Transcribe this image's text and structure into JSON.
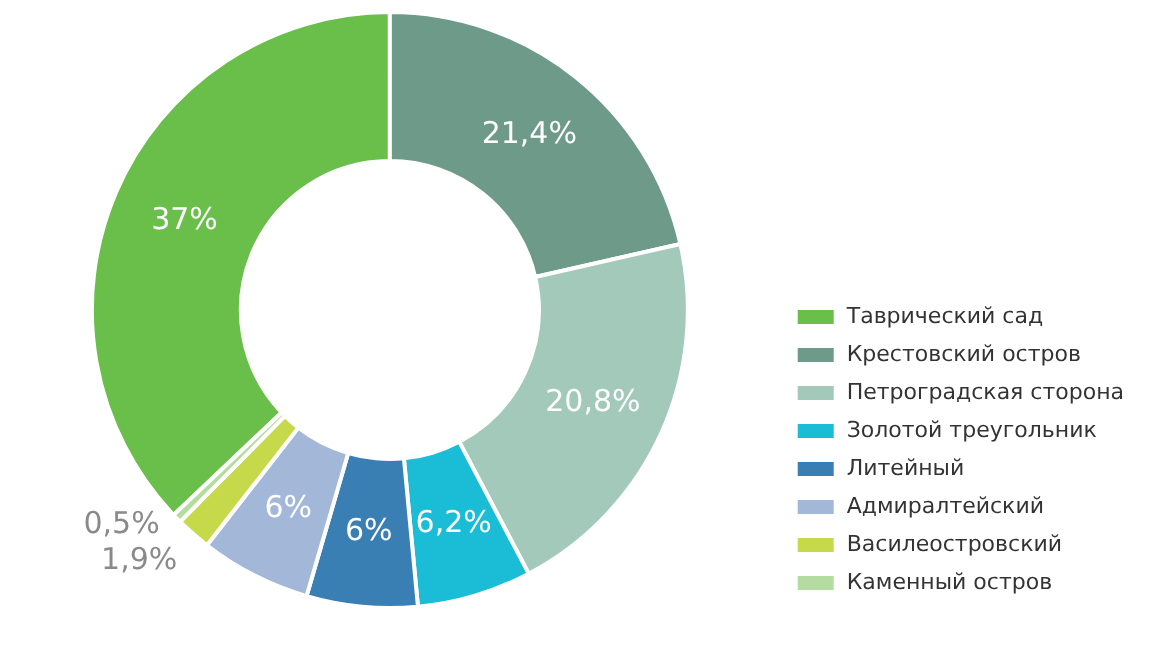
{
  "chart_data": {
    "type": "donut",
    "legend": "right",
    "categories": [
      "Таврический сад",
      "Крестовский остров",
      "Петроградская сторона",
      "Золотой треугольник",
      "Литейный",
      "Адмиралтейский",
      "Василеостровский",
      "Каменный остров"
    ],
    "values": [
      37,
      21.4,
      20.8,
      6.2,
      6,
      6,
      1.9,
      0.5
    ],
    "value_labels": [
      "37%",
      "21,4%",
      "20,8%",
      "6,2%",
      "6%",
      "6%",
      "1,9%",
      "0,5%"
    ],
    "colors": [
      "#6abf4b",
      "#6e9a8a",
      "#a3c9bb",
      "#1bbcd6",
      "#3a7fb3",
      "#a3b8d8",
      "#c6d94a",
      "#b5dca0"
    ]
  }
}
